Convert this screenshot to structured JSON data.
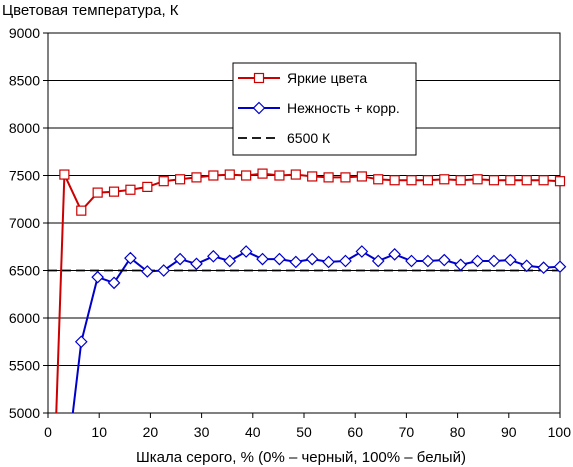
{
  "chart_data": {
    "type": "line",
    "title": "",
    "ylabel": "Цветовая температура, К",
    "xlabel": "Шкала серого, % (0% – черный, 100% – белый)",
    "xlim": [
      0,
      100
    ],
    "ylim": [
      5000,
      9000
    ],
    "x_ticks": [
      0,
      10,
      20,
      30,
      40,
      50,
      60,
      70,
      80,
      90,
      100
    ],
    "y_ticks": [
      5000,
      5500,
      6000,
      6500,
      7000,
      7500,
      8000,
      8500,
      9000
    ],
    "x_tick_labels": [
      "0",
      "10",
      "20",
      "30",
      "40",
      "50",
      "60",
      "70",
      "80",
      "90",
      "100"
    ],
    "y_tick_labels": [
      "5000",
      "5500",
      "6000",
      "6500",
      "7000",
      "7500",
      "8000",
      "8500",
      "9000"
    ],
    "grid": {
      "horizontal": true,
      "vertical": false
    },
    "legend_position": "top-right",
    "series": [
      {
        "name": "Яркие цвета",
        "color": "#cc0000",
        "marker": "square",
        "dashed": false,
        "x": [
          1.6,
          3.2,
          6.5,
          9.7,
          12.9,
          16.1,
          19.4,
          22.6,
          25.8,
          29.0,
          32.3,
          35.5,
          38.7,
          41.9,
          45.2,
          48.4,
          51.6,
          54.8,
          58.1,
          61.3,
          64.5,
          67.7,
          71.0,
          74.2,
          77.4,
          80.6,
          83.9,
          87.1,
          90.3,
          93.5,
          96.8,
          100.0
        ],
        "values": [
          4980,
          7510,
          7130,
          7320,
          7330,
          7350,
          7380,
          7440,
          7460,
          7480,
          7500,
          7510,
          7500,
          7520,
          7500,
          7510,
          7490,
          7480,
          7480,
          7490,
          7460,
          7450,
          7450,
          7450,
          7460,
          7450,
          7460,
          7450,
          7450,
          7450,
          7450,
          7440
        ]
      },
      {
        "name": "Нежность + корр.",
        "color": "#0000cc",
        "marker": "diamond",
        "dashed": false,
        "x": [
          4.8,
          6.5,
          9.7,
          12.9,
          16.1,
          19.4,
          22.6,
          25.8,
          29.0,
          32.3,
          35.5,
          38.7,
          41.9,
          45.2,
          48.4,
          51.6,
          54.8,
          58.1,
          61.3,
          64.5,
          67.7,
          71.0,
          74.2,
          77.4,
          80.6,
          83.9,
          87.1,
          90.3,
          93.5,
          96.8,
          100.0
        ],
        "values": [
          4980,
          5750,
          6430,
          6370,
          6630,
          6490,
          6500,
          6620,
          6570,
          6650,
          6600,
          6700,
          6620,
          6620,
          6590,
          6620,
          6590,
          6600,
          6700,
          6600,
          6670,
          6600,
          6600,
          6610,
          6560,
          6600,
          6600,
          6610,
          6550,
          6530,
          6540
        ]
      },
      {
        "name": "6500 К",
        "color": "#000000",
        "marker": "none",
        "dashed": true,
        "x": [
          0,
          100
        ],
        "values": [
          6500,
          6500
        ]
      }
    ]
  }
}
